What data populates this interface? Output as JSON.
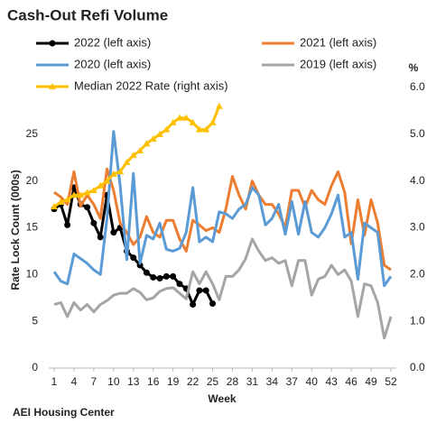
{
  "chart_data": {
    "type": "line",
    "title": "Cash-Out Refi Volume",
    "xlabel": "Week",
    "ylabel": "Rate Lock Count (000s)",
    "y2label": "%",
    "source": "AEI Housing Center",
    "x": [
      1,
      2,
      3,
      4,
      5,
      6,
      7,
      8,
      9,
      10,
      11,
      12,
      13,
      14,
      15,
      16,
      17,
      18,
      19,
      20,
      21,
      22,
      23,
      24,
      25,
      26,
      27,
      28,
      29,
      30,
      31,
      32,
      33,
      34,
      35,
      36,
      37,
      38,
      39,
      40,
      41,
      42,
      43,
      44,
      45,
      46,
      47,
      48,
      49,
      50,
      51,
      52
    ],
    "xlim": [
      1,
      52
    ],
    "xticks": [
      1,
      4,
      7,
      10,
      13,
      16,
      19,
      22,
      25,
      28,
      31,
      34,
      37,
      40,
      43,
      46,
      49,
      52
    ],
    "ylim": [
      0,
      30
    ],
    "yticks": [
      0,
      5,
      10,
      15,
      20,
      25
    ],
    "y2lim": [
      0,
      6
    ],
    "y2ticks": [
      {
        "value": 0,
        "label": "0.0"
      },
      {
        "value": 1,
        "label": "1.0"
      },
      {
        "value": 2,
        "label": "2.0"
      },
      {
        "value": 3,
        "label": "3.0"
      },
      {
        "value": 4,
        "label": "4.0"
      },
      {
        "value": 5,
        "label": "5.0"
      },
      {
        "value": 6,
        "label": "6.0"
      }
    ],
    "grid": false,
    "series": [
      {
        "name": "2022 (left axis)",
        "color": "#000000",
        "marker": "circle",
        "values": [
          17,
          17.5,
          15.3,
          19.3,
          17.5,
          17.2,
          15.5,
          14,
          18.5,
          14.5,
          15,
          12.5,
          11.8,
          11,
          10.2,
          9.7,
          9.6,
          9.8,
          9.8,
          9,
          8.5,
          6.8,
          8.3,
          8.3,
          6.9,
          null,
          null,
          null,
          null,
          null,
          null,
          null,
          null,
          null,
          null,
          null,
          null,
          null,
          null,
          null,
          null,
          null,
          null,
          null,
          null,
          null,
          null,
          null,
          null,
          null,
          null,
          null
        ]
      },
      {
        "name": "2021 (left axis)",
        "color": "#ed7d31",
        "values": [
          18.8,
          18.3,
          17.5,
          21,
          17.3,
          18.5,
          17.5,
          16,
          21.3,
          19,
          15.5,
          14.5,
          13.2,
          14,
          16.2,
          14.5,
          14,
          15.8,
          15.8,
          13.8,
          12.5,
          15.8,
          15.3,
          14.7,
          15,
          14.5,
          17,
          20.5,
          18.5,
          17,
          20,
          18.5,
          17.5,
          17.5,
          16.5,
          15,
          19,
          19,
          17.2,
          19,
          18,
          17.5,
          19.5,
          21,
          18.8,
          13.3,
          18,
          14.2,
          18,
          15.5,
          11,
          10.5
        ]
      },
      {
        "name": "2020 (left axis)",
        "color": "#5b9bd5",
        "values": [
          10.3,
          9.3,
          9,
          12.2,
          11.7,
          11.2,
          10.5,
          10,
          16,
          25.3,
          19.5,
          11.6,
          20.8,
          11.2,
          14.2,
          13.8,
          15.5,
          12.7,
          12.5,
          12.8,
          14.5,
          19.3,
          13.5,
          14,
          13.5,
          16.7,
          16.5,
          16,
          17,
          17.5,
          19.3,
          18.5,
          15.3,
          16,
          17.5,
          14.3,
          17.8,
          14.3,
          17.8,
          14.5,
          14,
          15,
          16.5,
          18.5,
          14,
          14.5,
          9.5,
          15.5,
          15,
          14.5,
          8.8,
          9.8
        ]
      },
      {
        "name": "2019 (left axis)",
        "color": "#a5a5a5",
        "values": [
          6.8,
          7,
          5.5,
          7,
          6.2,
          6.8,
          6,
          6.8,
          7.2,
          7.8,
          8,
          8,
          8.5,
          8.1,
          7.3,
          7.5,
          8.2,
          8.5,
          8.6,
          8,
          7.4,
          10.3,
          9,
          10.3,
          9,
          7.3,
          9.8,
          9.8,
          10.5,
          11.7,
          13.8,
          12.5,
          11.5,
          11.8,
          11.2,
          11.5,
          8.8,
          11.5,
          11.5,
          7.8,
          9.5,
          9.8,
          11,
          10,
          10.5,
          9.3,
          5.5,
          9,
          8.8,
          7,
          3.2,
          5.5
        ]
      },
      {
        "name": "Median 2022 Rate (right axis)",
        "color": "#ffc000",
        "marker": "triangle",
        "axis": "y2",
        "values": [
          3.45,
          3.55,
          3.6,
          3.7,
          3.7,
          3.75,
          3.8,
          3.9,
          4.0,
          4.15,
          4.2,
          4.4,
          4.55,
          4.65,
          4.8,
          4.9,
          5.0,
          5.1,
          5.25,
          5.35,
          5.35,
          5.25,
          5.1,
          5.1,
          5.25,
          5.6,
          null,
          null,
          null,
          null,
          null,
          null,
          null,
          null,
          null,
          null,
          null,
          null,
          null,
          null,
          null,
          null,
          null,
          null,
          null,
          null,
          null,
          null,
          null,
          null,
          null,
          null
        ]
      }
    ]
  }
}
